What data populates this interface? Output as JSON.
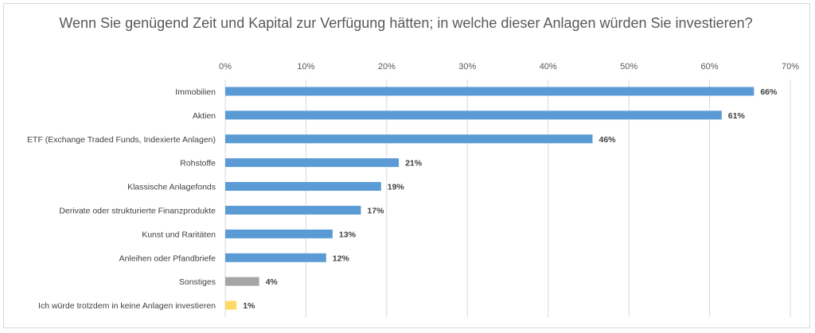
{
  "chart_data": {
    "type": "bar",
    "orientation": "horizontal",
    "title": "Wenn Sie genügend Zeit und Kapital zur Verfügung hätten; in welche dieser Anlagen würden Sie investieren?",
    "xlabel": "",
    "ylabel": "",
    "xlim": [
      0,
      70
    ],
    "x_ticks": [
      "0%",
      "10%",
      "20%",
      "30%",
      "40%",
      "50%",
      "60%",
      "70%"
    ],
    "x_axis_position": "top",
    "grid": true,
    "categories": [
      "Immobilien",
      "Aktien",
      "ETF (Exchange Traded Funds, Indexierte Anlagen)",
      "Rohstoffe",
      "Klassische Anlagefonds",
      "Derivate oder strukturierte Finanzprodukte",
      "Kunst und Raritäten",
      "Anleihen oder Pfandbriefe",
      "Sonstiges",
      "Ich würde trotzdem in keine Anlagen investieren"
    ],
    "values": [
      65.5,
      61.5,
      45.5,
      21.5,
      19.3,
      16.8,
      13.3,
      12.5,
      4.2,
      1.4
    ],
    "data_labels": [
      "66%",
      "61%",
      "46%",
      "21%",
      "19%",
      "17%",
      "13%",
      "12%",
      "4%",
      "1%"
    ],
    "colors": [
      "#5b9bd5",
      "#5b9bd5",
      "#5b9bd5",
      "#5b9bd5",
      "#5b9bd5",
      "#5b9bd5",
      "#5b9bd5",
      "#5b9bd5",
      "#a5a5a5",
      "#ffd966"
    ]
  }
}
